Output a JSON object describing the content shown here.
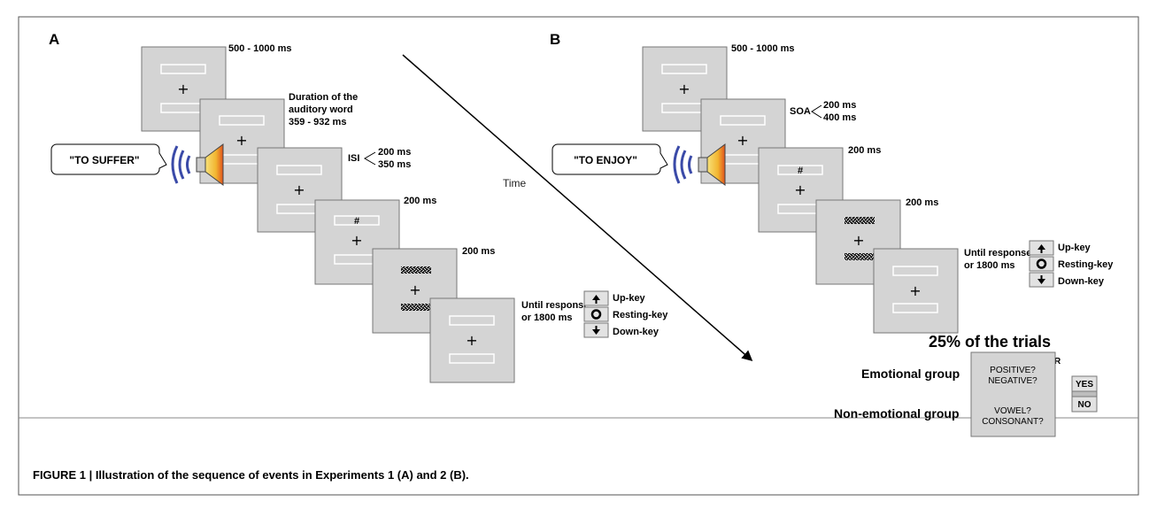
{
  "panel_a": {
    "letter": "A",
    "word": "\"TO SUFFER\"",
    "t1": "500 - 1000 ms",
    "dur1": "Duration of the",
    "dur2": "auditory word",
    "dur3": "359 - 932 ms",
    "isi": "ISI",
    "isi_a": "200 ms",
    "isi_b": "350 ms",
    "t4": "200 ms",
    "t5": "200 ms",
    "until1": "Until response",
    "until2": "or 1800 ms",
    "hash": "#",
    "cross": "+",
    "key_up": "Up-key",
    "key_rest": "Resting-key",
    "key_down": "Down-key"
  },
  "time_label": "Time",
  "panel_b": {
    "letter": "B",
    "word": "\"TO ENJOY\"",
    "t1": "500 - 1000 ms",
    "soa": "SOA",
    "soa_a": "200 ms",
    "soa_b": "400 ms",
    "t3": "200 ms",
    "t4": "200 ms",
    "until1": "Until response",
    "until2": "or 1800 ms",
    "hash": "#",
    "cross": "+",
    "key_up": "Up-key",
    "key_rest": "Resting-key",
    "key_down": "Down-key",
    "trials": "25% of the trials",
    "until_r": "Until R",
    "emotional": "Emotional group",
    "non_emotional": "Non-emotional group",
    "q_pos": "POSITIVE?",
    "q_neg": "NEGATIVE?",
    "q_vowel": "VOWEL?",
    "q_cons": "CONSONANT?",
    "yes": "YES",
    "no": "NO"
  },
  "caption": "FIGURE 1 | Illustration of the sequence of events in Experiments 1 (A) and 2 (B).",
  "colors": {
    "screen": "#d4d4d4",
    "screen_border": "#777777",
    "key": "#e2e2e2",
    "speaker_wave": "#3a4aa8",
    "speaker_cone": "#f2c230"
  }
}
